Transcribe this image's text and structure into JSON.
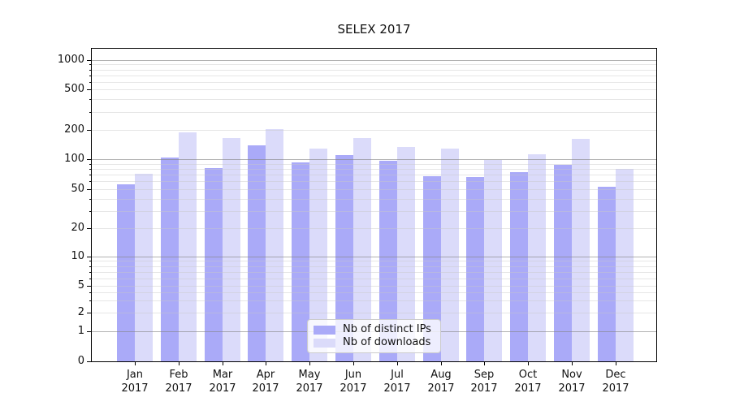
{
  "title": "SELEX 2017",
  "chart_data": {
    "type": "bar",
    "title": "SELEX 2017",
    "categories": [
      "Jan",
      "Feb",
      "Mar",
      "Apr",
      "May",
      "Jun",
      "Jul",
      "Aug",
      "Sep",
      "Oct",
      "Nov",
      "Dec"
    ],
    "x_year": "2017",
    "series": [
      {
        "name": "Nb of distinct IPs",
        "color": "#aaaaf8",
        "values": [
          56,
          103,
          81,
          137,
          92,
          111,
          97,
          68,
          66,
          74,
          87,
          53
        ]
      },
      {
        "name": "Nb of downloads",
        "color": "#dbdbfa",
        "values": [
          71,
          186,
          163,
          203,
          129,
          165,
          134,
          128,
          99,
          113,
          160,
          80
        ]
      }
    ],
    "yscale": "symlog",
    "ylim": [
      0,
      1400
    ],
    "yticks": [
      0,
      1,
      2,
      5,
      10,
      20,
      50,
      100,
      200,
      500,
      1000
    ],
    "y_major_grid": [
      1,
      10,
      100,
      1000
    ],
    "y_minor_grid": [
      2,
      3,
      4,
      5,
      6,
      7,
      8,
      9,
      20,
      30,
      40,
      50,
      60,
      70,
      80,
      90,
      200,
      300,
      400,
      500,
      600,
      700,
      800,
      900
    ],
    "grid": "both",
    "legend_position": "lower center",
    "xlabel": "",
    "ylabel": ""
  },
  "legend": {
    "items": [
      {
        "label": "Nb of distinct IPs",
        "color": "#aaaaf8"
      },
      {
        "label": "Nb of downloads",
        "color": "#dbdbfa"
      }
    ]
  },
  "colors": {
    "background": "#ffffff",
    "bar_distinct_ips": "#aaaaf8",
    "bar_downloads": "#dbdbfa",
    "spine": "#000000",
    "major_grid": "#b4b4b4",
    "minor_grid": "#e6e6e6",
    "text": "#111111",
    "legend_border": "#cccccc"
  }
}
